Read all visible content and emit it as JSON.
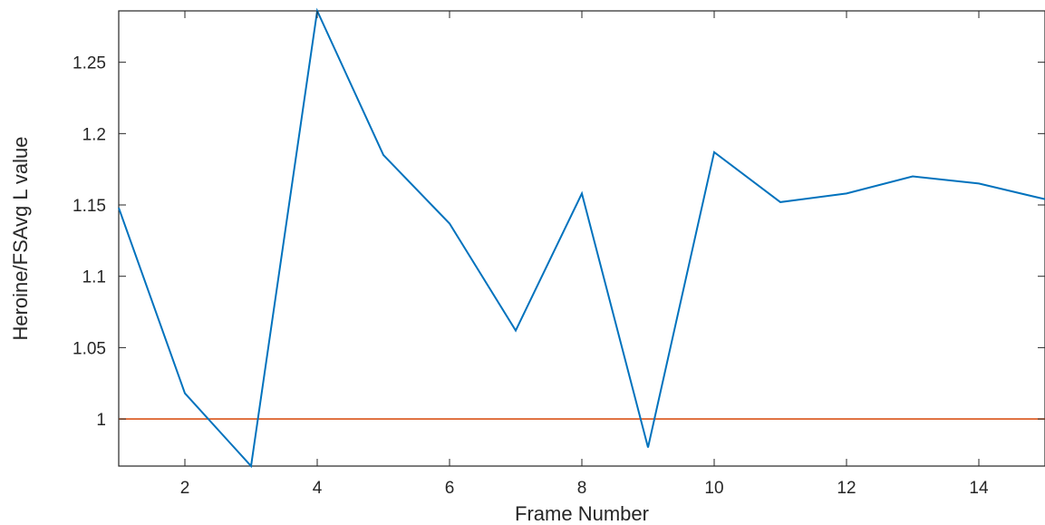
{
  "chart_data": {
    "type": "line",
    "xlabel": "Frame Number",
    "ylabel": "Heroine/FSAvg L value",
    "xlim": [
      1,
      15
    ],
    "ylim": [
      0.967,
      1.286
    ],
    "xticks": [
      2,
      4,
      6,
      8,
      10,
      12,
      14
    ],
    "yticks": [
      1,
      1.05,
      1.1,
      1.15,
      1.2,
      1.25
    ],
    "ytick_labels": [
      "1",
      "1.05",
      "1.1",
      "1.15",
      "1.2",
      "1.25"
    ],
    "xtick_labels": [
      "2",
      "4",
      "6",
      "8",
      "10",
      "12",
      "14"
    ],
    "grid": false,
    "series": [
      {
        "color": "#0072BD",
        "x": [
          1,
          2,
          3,
          4,
          5,
          6,
          7,
          8,
          9,
          10,
          11,
          12,
          13,
          14,
          15
        ],
        "y": [
          1.148,
          1.018,
          0.967,
          1.286,
          1.185,
          1.137,
          1.062,
          1.158,
          0.98,
          1.187,
          1.152,
          1.158,
          1.17,
          1.165,
          1.154
        ]
      }
    ],
    "reference_line": {
      "y": 1,
      "color": "#D95319"
    }
  }
}
